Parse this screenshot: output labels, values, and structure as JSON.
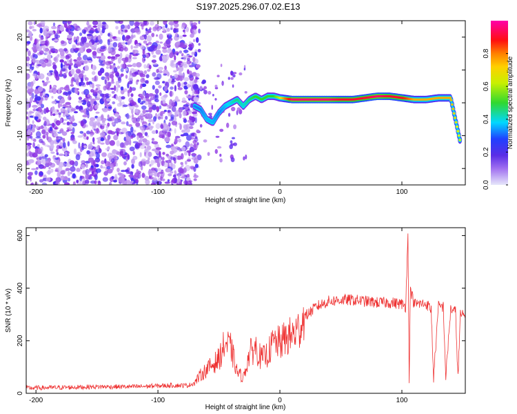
{
  "figure_title": "S197.2025.296.07.02.E13",
  "colors": {
    "scatter_purple": "#7a16d8",
    "ridge_cyan": "#00d8ff",
    "ridge_green": "#30d830",
    "ridge_yellow": "#f0f000",
    "ridge_red": "#e8162a",
    "snr_line": "#ee3030",
    "axis": "#000000"
  },
  "chart_data": [
    {
      "type": "heatmap",
      "xlabel": "Height of straight line (km)",
      "ylabel": "Frequency (Hz)",
      "xlim": [
        -208,
        152
      ],
      "ylim": [
        -25,
        25
      ],
      "xticks": [
        -200,
        -100,
        0,
        100
      ],
      "xticklabels": [
        "-200",
        "-100",
        "0",
        "100"
      ],
      "yticks": [
        -20,
        -10,
        0,
        10,
        20
      ],
      "yticklabels": [
        "-20",
        "-10",
        "0",
        "10",
        "20"
      ],
      "colorbar": {
        "label": "Normalized spectral amplitude",
        "range": [
          0,
          1
        ],
        "ticks": [
          0.0,
          0.2,
          0.4,
          0.6,
          0.8
        ],
        "ticklabels": [
          "0.0",
          "0.2",
          "0.4",
          "0.6",
          "0.8"
        ],
        "colormap": [
          "#e6e6fa",
          "#8a2be2",
          "#3030ff",
          "#00d8ff",
          "#30d830",
          "#f0f000",
          "#ff8000",
          "#ff1010",
          "#ff00aa"
        ]
      },
      "ridge": {
        "x": [
          -70,
          -65,
          -60,
          -55,
          -50,
          -45,
          -40,
          -35,
          -30,
          -25,
          -20,
          -15,
          -10,
          -5,
          0,
          10,
          20,
          30,
          40,
          50,
          60,
          70,
          80,
          90,
          100,
          110,
          120,
          130,
          140,
          148
        ],
        "frequency": [
          -1,
          -2,
          -5,
          -6,
          -3,
          -1,
          0,
          1,
          -1,
          1,
          2,
          1,
          2,
          2,
          1.5,
          1,
          1,
          1,
          1,
          1,
          1,
          1.5,
          2,
          2,
          1.5,
          1,
          1,
          1.5,
          1.5,
          -12
        ],
        "amplitude": [
          0.3,
          0.3,
          0.35,
          0.35,
          0.3,
          0.35,
          0.4,
          0.45,
          0.4,
          0.45,
          0.5,
          0.5,
          0.5,
          0.5,
          0.6,
          0.95,
          0.95,
          0.95,
          0.95,
          0.9,
          0.9,
          0.9,
          0.95,
          0.9,
          0.9,
          0.7,
          0.7,
          0.7,
          0.7,
          0.6
        ]
      }
    },
    {
      "type": "line",
      "xlabel": "Height of straight line (km)",
      "ylabel": "SNR (10 * v/v)",
      "xlim": [
        -208,
        152
      ],
      "ylim": [
        0,
        630
      ],
      "xticks": [
        -200,
        -100,
        0,
        100
      ],
      "xticklabels": [
        "-200",
        "-100",
        "0",
        "100"
      ],
      "yticks": [
        0,
        200,
        400,
        600
      ],
      "yticklabels": [
        "0",
        "200",
        "400",
        "600"
      ],
      "series": [
        {
          "x": [
            -208,
            -180,
            -150,
            -120,
            -90,
            -75,
            -70,
            -65,
            -60,
            -55,
            -50,
            -45,
            -40,
            -35,
            -30,
            -25,
            -20,
            -15,
            -10,
            -5,
            0,
            5,
            10,
            15,
            20,
            30,
            40,
            50,
            60,
            70,
            80,
            90,
            100,
            103,
            105,
            106,
            107,
            110,
            120,
            124,
            126,
            130,
            134,
            136,
            140,
            144,
            146,
            148,
            152
          ],
          "y": [
            20,
            22,
            25,
            25,
            30,
            30,
            40,
            70,
            90,
            110,
            130,
            190,
            170,
            80,
            60,
            150,
            175,
            130,
            150,
            195,
            190,
            210,
            220,
            240,
            290,
            330,
            350,
            355,
            355,
            350,
            345,
            345,
            340,
            330,
            600,
            60,
            400,
            340,
            340,
            320,
            60,
            330,
            330,
            60,
            320,
            310,
            60,
            300,
            290
          ]
        }
      ]
    }
  ]
}
